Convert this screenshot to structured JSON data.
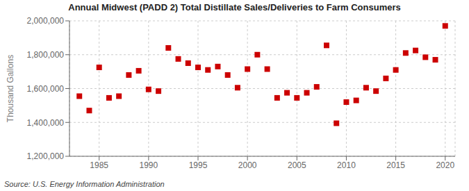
{
  "chart_data": {
    "type": "scatter",
    "title": "Annual Midwest (PADD 2) Total Distillate Sales/Deliveries to Farm Consumers",
    "ylabel": "Thousand Gallons",
    "annotations": [
      "Source: U.S. Energy Information Administration"
    ],
    "color": "#cc0000",
    "marker": "square",
    "grid": true,
    "xlim": [
      1982,
      2021
    ],
    "xticks": [
      1985,
      1990,
      1995,
      2000,
      2005,
      2010,
      2015,
      2020
    ],
    "ylim": [
      1200000,
      2000000
    ],
    "yticks": [
      {
        "value": 1200000,
        "label": "1,200,000"
      },
      {
        "value": 1400000,
        "label": "1,400,000"
      },
      {
        "value": 1600000,
        "label": "1,600,000"
      },
      {
        "value": 1800000,
        "label": "1,800,000"
      },
      {
        "value": 2000000,
        "label": "2,000,000"
      }
    ],
    "x": [
      1983,
      1984,
      1985,
      1986,
      1987,
      1988,
      1989,
      1990,
      1991,
      1992,
      1993,
      1994,
      1995,
      1996,
      1997,
      1998,
      1999,
      2000,
      2001,
      2002,
      2003,
      2004,
      2005,
      2006,
      2007,
      2008,
      2009,
      2010,
      2011,
      2012,
      2013,
      2014,
      2015,
      2016,
      2017,
      2018,
      2019,
      2020
    ],
    "values": [
      1555000,
      1470000,
      1725000,
      1545000,
      1555000,
      1680000,
      1705000,
      1595000,
      1585000,
      1840000,
      1775000,
      1750000,
      1725000,
      1710000,
      1730000,
      1680000,
      1605000,
      1715000,
      1800000,
      1715000,
      1545000,
      1575000,
      1545000,
      1575000,
      1610000,
      1855000,
      1395000,
      1520000,
      1530000,
      1605000,
      1585000,
      1660000,
      1710000,
      1810000,
      1825000,
      1785000,
      1770000,
      1970000
    ]
  }
}
